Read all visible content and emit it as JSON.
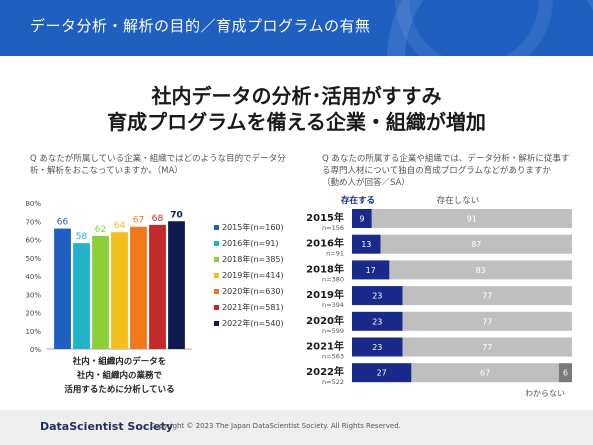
{
  "header": {
    "title": "データ分析・解析の目的／育成プログラムの有無"
  },
  "headline": {
    "line1": "社内データの分析･活用がすすみ",
    "line2": "育成プログラムを備える企業・組織が増加"
  },
  "questions": {
    "left": [
      "Q あなたが所属している企業・組織ではどのような目的でデータ分",
      "析・解析をおこなっていますか。（MA）"
    ],
    "right": [
      "Q あなたの所属する企業や組織では、データ分析・解析に従事す",
      "る専門人材について独自の育成プログラムなどがありますか",
      "（勤め人が回答／SA）"
    ]
  },
  "footer": {
    "brand": "DataScientist Society",
    "copyright": "Copyright © 2023  The Japan DataScientist Society. All Rights Reserved."
  },
  "chart_data": [
    {
      "type": "bar",
      "categories": [
        "社内・組織内のデータを社内・組織内の業務で活用するために分析している"
      ],
      "category_label_lines": [
        "社内・組織内のデータを",
        "社内・組織内の業務で",
        "活用するために分析している"
      ],
      "series": [
        {
          "name": "2015年(n=160)",
          "values": [
            66
          ],
          "color": "#1f5fbf"
        },
        {
          "name": "2016年(n=91)",
          "values": [
            58
          ],
          "color": "#22b3c9"
        },
        {
          "name": "2018年(n=385)",
          "values": [
            62
          ],
          "color": "#8ccf3a"
        },
        {
          "name": "2019年(n=414)",
          "values": [
            64
          ],
          "color": "#f2bf1c"
        },
        {
          "name": "2020年(n=630)",
          "values": [
            67
          ],
          "color": "#f07a1b"
        },
        {
          "name": "2021年(n=581)",
          "values": [
            68
          ],
          "color": "#c42a2a"
        },
        {
          "name": "2022年(n=540)",
          "values": [
            70
          ],
          "color": "#0f1a4d"
        }
      ],
      "ylim": [
        0,
        80
      ],
      "yticks": [
        "0%",
        "10%",
        "20%",
        "30%",
        "40%",
        "50%",
        "60%",
        "70%",
        "80%"
      ],
      "legend": "right",
      "grid": false
    },
    {
      "type": "bar",
      "orientation": "horizontal",
      "stacked": true,
      "categories": [
        "2015年",
        "2016年",
        "2018年",
        "2019年",
        "2020年",
        "2021年",
        "2022年"
      ],
      "n_labels": [
        "n=156",
        "n=91",
        "n=380",
        "n=394",
        "n=599",
        "n=563",
        "n=522"
      ],
      "series": [
        {
          "name": "存在する",
          "values": [
            9,
            13,
            17,
            23,
            23,
            23,
            27
          ],
          "color": "#1a2a8a"
        },
        {
          "name": "存在しない",
          "values": [
            91,
            87,
            83,
            77,
            77,
            77,
            67
          ],
          "color": "#bfbfbf"
        },
        {
          "name": "わからない",
          "values": [
            0,
            0,
            0,
            0,
            0,
            0,
            6
          ],
          "color": "#7a7a7a"
        }
      ],
      "xlim": [
        0,
        100
      ]
    }
  ]
}
